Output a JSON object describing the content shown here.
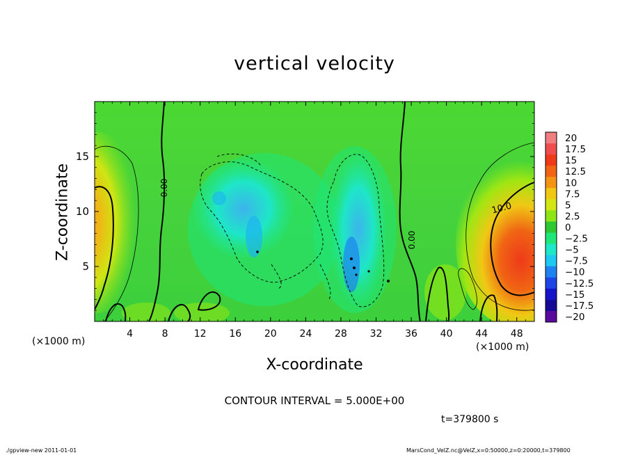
{
  "chart_data": {
    "type": "heatmap",
    "title": "vertical velocity",
    "xlabel": "X-coordinate",
    "ylabel": "Z-coordinate",
    "x_unit_left": "(×1000 m)",
    "x_unit_right": "(×1000 m)",
    "xlim": [
      0,
      50
    ],
    "ylim": [
      0,
      20
    ],
    "x_ticks": [
      4,
      8,
      12,
      16,
      20,
      24,
      28,
      32,
      36,
      40,
      44,
      48
    ],
    "y_ticks": [
      5,
      10,
      15
    ],
    "colorbar": {
      "levels": [
        20,
        17.5,
        15,
        12.5,
        10,
        7.5,
        5,
        2.5,
        0,
        -2.5,
        -5,
        -7.5,
        -10,
        -12.5,
        -15,
        -17.5,
        -20
      ],
      "labels": [
        "20",
        "17.5",
        "15",
        "12.5",
        "10",
        "7.5",
        "5",
        "2.5",
        "0",
        "−2.5",
        "−5",
        "−7.5",
        "−10",
        "−12.5",
        "−15",
        "−17.5",
        "−20"
      ],
      "colors": [
        "#f08080",
        "#f04e4e",
        "#ee3a1a",
        "#f06414",
        "#f59414",
        "#f0c814",
        "#d2e614",
        "#8ce614",
        "#2ec832",
        "#1ee678",
        "#1ee6c8",
        "#1ec8f0",
        "#1e82f0",
        "#1e46e6",
        "#1414c8",
        "#140a96",
        "#5a0a9b"
      ]
    },
    "contour_labels": [
      "0.00",
      "0.00",
      "10.0"
    ],
    "contour_interval_text": "CONTOUR INTERVAL = 5.000E+00",
    "time_text": "t=379800 s"
  },
  "footer": {
    "left": "./gpview-new  2011-01-01",
    "right": "MarsCond_VelZ.nc@VelZ,x=0:50000,z=0:20000,t=379800"
  }
}
